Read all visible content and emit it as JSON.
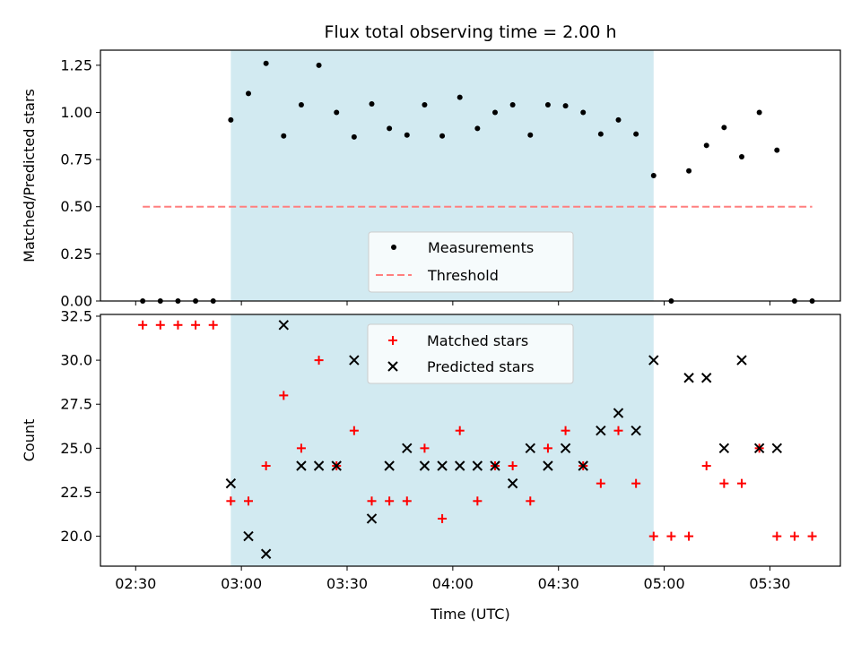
{
  "chart_data": [
    {
      "type": "scatter",
      "title": "Flux total observing time = 2.00 h",
      "xlabel": "",
      "ylabel": "Matched/Predicted stars",
      "ylim": [
        0,
        1.33
      ],
      "yticks": [
        "0.00",
        "0.25",
        "0.50",
        "0.75",
        "1.00",
        "1.25"
      ],
      "xlim": [
        "02:20",
        "05:50"
      ],
      "shaded_interval": [
        "02:57",
        "04:57"
      ],
      "legend": {
        "placement": "lower-center",
        "entries": [
          "Measurements",
          "Threshold"
        ]
      },
      "series": [
        {
          "name": "Measurements",
          "marker": "dot",
          "color": "#000000",
          "x": [
            "02:32",
            "02:37",
            "02:42",
            "02:47",
            "02:52",
            "02:57",
            "03:02",
            "03:07",
            "03:12",
            "03:17",
            "03:22",
            "03:27",
            "03:32",
            "03:37",
            "03:42",
            "03:47",
            "03:52",
            "03:57",
            "04:02",
            "04:07",
            "04:12",
            "04:17",
            "04:22",
            "04:27",
            "04:32",
            "04:37",
            "04:42",
            "04:47",
            "04:52",
            "04:57",
            "05:02",
            "05:07",
            "05:12",
            "05:17",
            "05:22",
            "05:27",
            "05:32",
            "05:37",
            "05:42"
          ],
          "y": [
            0,
            0,
            0,
            0,
            0,
            0.96,
            1.1,
            1.26,
            0.875,
            1.04,
            1.25,
            1.0,
            0.87,
            1.045,
            0.915,
            0.88,
            1.04,
            0.875,
            1.08,
            0.915,
            1.0,
            1.04,
            0.88,
            1.04,
            1.035,
            1.0,
            0.885,
            0.96,
            0.885,
            0.665,
            0,
            0.69,
            0.825,
            0.92,
            0.765,
            1.0,
            0.8,
            0,
            0
          ]
        },
        {
          "name": "Threshold",
          "style": "dashed",
          "color": "#ff7f7f",
          "x": [
            "02:32",
            "05:42"
          ],
          "y": [
            0.5,
            0.5
          ]
        }
      ]
    },
    {
      "type": "scatter",
      "title": "",
      "xlabel": "Time (UTC)",
      "ylabel": "Count",
      "ylim": [
        18.3,
        32.6
      ],
      "yticks": [
        "20.0",
        "22.5",
        "25.0",
        "27.5",
        "30.0",
        "32.5"
      ],
      "xlim": [
        "02:20",
        "05:50"
      ],
      "xticks": [
        "02:30",
        "03:00",
        "03:30",
        "04:00",
        "04:30",
        "05:00",
        "05:30"
      ],
      "shaded_interval": [
        "02:57",
        "04:57"
      ],
      "legend": {
        "placement": "upper-center",
        "entries": [
          "Matched stars",
          "Predicted stars"
        ]
      },
      "series": [
        {
          "name": "Matched stars",
          "marker": "plus",
          "color": "#ff0000",
          "x": [
            "02:32",
            "02:37",
            "02:42",
            "02:47",
            "02:52",
            "02:57",
            "03:02",
            "03:07",
            "03:12",
            "03:17",
            "03:22",
            "03:27",
            "03:32",
            "03:37",
            "03:42",
            "03:47",
            "03:52",
            "03:57",
            "04:02",
            "04:07",
            "04:12",
            "04:17",
            "04:22",
            "04:27",
            "04:32",
            "04:37",
            "04:42",
            "04:47",
            "04:52",
            "04:57",
            "05:02",
            "05:07",
            "05:12",
            "05:17",
            "05:22",
            "05:27",
            "05:32",
            "05:37",
            "05:42"
          ],
          "y": [
            32,
            32,
            32,
            32,
            32,
            22,
            22,
            24,
            28,
            25,
            30,
            24,
            26,
            22,
            22,
            22,
            25,
            21,
            26,
            22,
            24,
            24,
            22,
            25,
            26,
            24,
            23,
            26,
            23,
            20,
            20,
            20,
            24,
            23,
            23,
            25,
            20,
            20,
            20
          ]
        },
        {
          "name": "Predicted stars",
          "marker": "x",
          "color": "#000000",
          "x": [
            "02:57",
            "03:02",
            "03:07",
            "03:12",
            "03:17",
            "03:22",
            "03:27",
            "03:32",
            "03:37",
            "03:42",
            "03:47",
            "03:52",
            "03:57",
            "04:02",
            "04:07",
            "04:12",
            "04:17",
            "04:22",
            "04:27",
            "04:32",
            "04:37",
            "04:42",
            "04:47",
            "04:52",
            "04:57",
            "05:07",
            "05:12",
            "05:17",
            "05:22",
            "05:27",
            "05:32"
          ],
          "y": [
            23,
            20,
            19,
            32,
            24,
            24,
            24,
            30,
            21,
            24,
            25,
            24,
            24,
            24,
            24,
            24,
            23,
            25,
            24,
            25,
            24,
            26,
            27,
            26,
            30,
            29,
            29,
            25,
            30,
            25,
            25
          ]
        }
      ]
    }
  ]
}
